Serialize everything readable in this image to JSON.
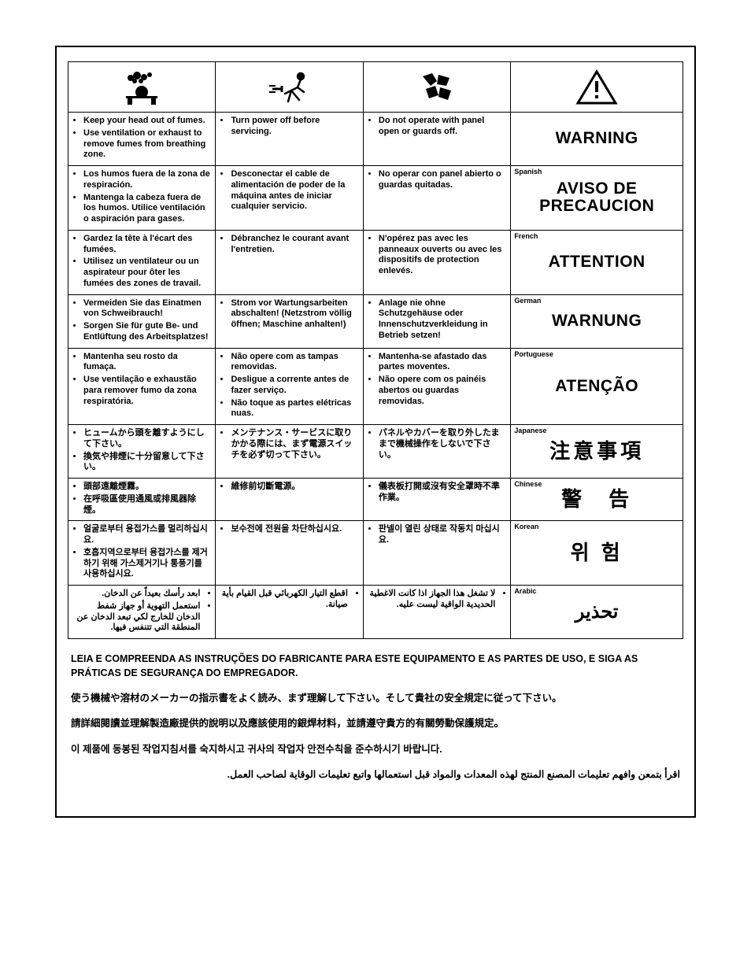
{
  "icons": [
    "fumes-icon",
    "power-off-icon",
    "panel-guard-icon",
    "warning-triangle-icon"
  ],
  "rows": [
    {
      "lang_label": "",
      "warn": "WARNING",
      "warn_class": "",
      "cols": [
        [
          "Keep your head out of fumes.",
          "Use ventilation or exhaust to remove fumes from breathing zone."
        ],
        [
          "Turn power off before servicing."
        ],
        [
          "Do not operate with panel open or guards off."
        ]
      ]
    },
    {
      "lang_label": "Spanish",
      "warn": "AVISO DE PRECAUCION",
      "warn_class": "",
      "cols": [
        [
          "Los humos fuera de la zona de respiración.",
          "Mantenga la cabeza fuera de los humos. Utilice ventilación o aspiración para gases."
        ],
        [
          "Desconectar el cable de alimentación de poder de la máquina antes de iniciar cualquier servicio."
        ],
        [
          "No operar con panel abierto o guardas quitadas."
        ]
      ]
    },
    {
      "lang_label": "French",
      "warn": "ATTENTION",
      "warn_class": "",
      "cols": [
        [
          "Gardez la tête à l'écart des fumées.",
          "Utilisez un ventilateur ou un aspirateur pour ôter les fumées des zones de travail."
        ],
        [
          "Débranchez le courant avant l'entretien."
        ],
        [
          "N'opérez pas avec les panneaux ouverts ou avec les dispositifs de protection enlevés."
        ]
      ]
    },
    {
      "lang_label": "German",
      "warn": "WARNUNG",
      "warn_class": "",
      "cols": [
        [
          "Vermeiden Sie das Einatmen von Schweibrauch!",
          "Sorgen Sie für gute Be- und Entlüftung des Arbeitsplatzes!"
        ],
        [
          "Strom vor Wartungsarbeiten abschalten! (Netzstrom völlig öffnen; Maschine anhalten!)"
        ],
        [
          "Anlage nie ohne Schutzgehäuse oder Innenschutzverkleidung in Betrieb setzen!"
        ]
      ]
    },
    {
      "lang_label": "Portuguese",
      "warn": "ATENÇÃO",
      "warn_class": "",
      "cols": [
        [
          "Mantenha seu rosto da fumaça.",
          "Use ventilação e exhaustão para remover fumo da zona respiratória."
        ],
        [
          "Não opere com as tampas removidas.",
          "Desligue a corrente antes de fazer serviço.",
          "Não toque as partes elétricas nuas."
        ],
        [
          "Mantenha-se afastado das partes moventes.",
          "Não opere com os painéis abertos ou guardas removidas."
        ]
      ]
    },
    {
      "lang_label": "Japanese",
      "warn": "注意事項",
      "warn_class": "cjk",
      "cols": [
        [
          "ヒュームから頭を離すようにして下さい。",
          "換気や排煙に十分留意して下さい。"
        ],
        [
          "メンテナンス・サービスに取りかかる際には、まず電源スイッチを必ず切って下さい。"
        ],
        [
          "パネルやカバーを取り外したままで機械操作をしないで下さい。"
        ]
      ]
    },
    {
      "lang_label": "Chinese",
      "warn": "警　告",
      "warn_class": "cjk",
      "cols": [
        [
          "頭部遠離煙霧。",
          "在呼吸區使用通風或排風器除煙。"
        ],
        [
          "維修前切斷電源。"
        ],
        [
          "儀表板打開或沒有安全罩時不準作業。"
        ]
      ]
    },
    {
      "lang_label": "Korean",
      "warn": "위 험",
      "warn_class": "cjk",
      "cols": [
        [
          "얼굴로부터 용접가스를 멀리하십시요.",
          "호흡지역으로부터 용접가스를 제거하기 위해 가스제거기나 통풍기를 사용하십시요."
        ],
        [
          "보수전에 전원을 차단하십시요."
        ],
        [
          "판넬이 열린 상태로 작동치 마십시요."
        ]
      ]
    },
    {
      "lang_label": "Arabic",
      "warn": "تحذير",
      "warn_class": "ar",
      "rtl": true,
      "cols": [
        [
          "ابعد رأسك بعيداً عن الدخان.",
          "استعمل التهوية أو جهاز شفط الدخان للخارج لكي تبعد الدخان عن المنطقة التي تتنفس فيها."
        ],
        [
          "اقطع التيار الكهربائي قبل القيام بأية صيانة."
        ],
        [
          "لا تشغل هذا الجهاز اذا كانت الاغطية الحديدية الواقية ليست عليه."
        ]
      ]
    }
  ],
  "footer": [
    {
      "text": "LEIA E COMPREENDA AS INSTRUÇÕES DO FABRICANTE PARA ESTE EQUIPAMENTO E AS PARTES DE USO, E SIGA AS PRÁTICAS DE SEGURANÇA DO EMPREGADOR.",
      "rtl": false
    },
    {
      "text": "使う機械や溶材のメーカーの指示書をよく読み、まず理解して下さい。そして貴社の安全規定に従って下さい。",
      "rtl": false
    },
    {
      "text": "請詳細閱讀並理解製造廠提供的說明以及應該使用的銀焊材料，並請遵守貴方的有關勞動保護規定。",
      "rtl": false
    },
    {
      "text": "이 제품에 동봉된 작업지침서를 숙지하시고 귀사의 작업자 안전수칙을 준수하시기 바랍니다.",
      "rtl": false
    },
    {
      "text": "اقرأ بتمعن وافهم تعليمات المصنع المنتج لهذه المعدات والمواد قبل استعمالها واتبع تعليمات الوقاية لصاحب العمل.",
      "rtl": true
    }
  ]
}
